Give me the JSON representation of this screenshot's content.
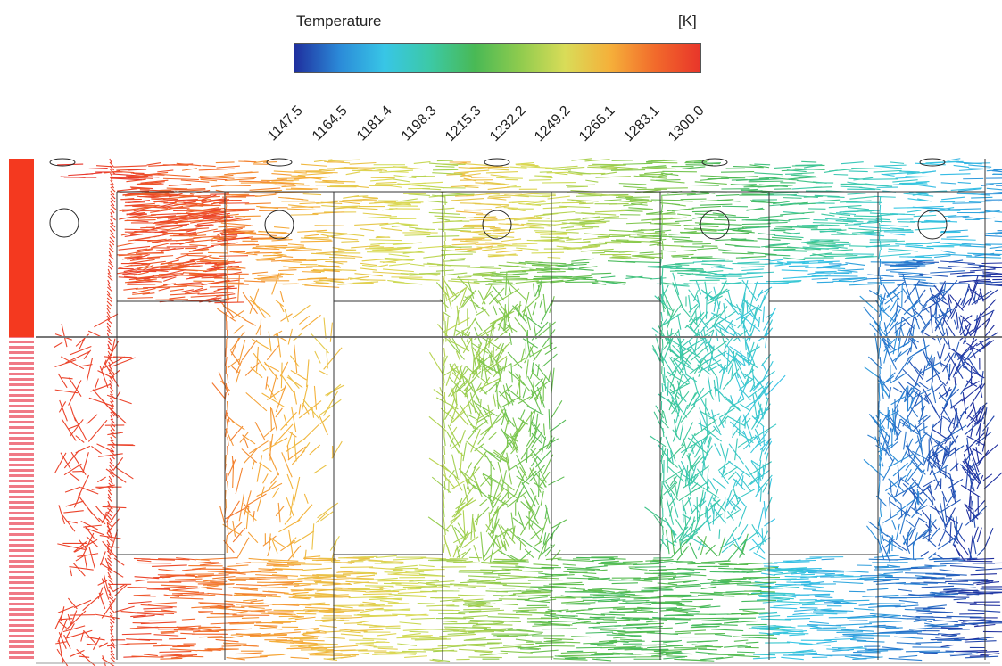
{
  "legend": {
    "title": "Temperature",
    "unit": "[K]",
    "ticks": [
      "1147.5",
      "1164.5",
      "1181.4",
      "1198.3",
      "1215.3",
      "1232.2",
      "1249.2",
      "1266.1",
      "1283.1",
      "1300.0"
    ],
    "colors": [
      "#1f2f9e",
      "#2b8ad8",
      "#38c6e6",
      "#3cc9a6",
      "#49b955",
      "#8fcb4e",
      "#d9dc58",
      "#f5b03a",
      "#f26a2b",
      "#e8352a"
    ]
  },
  "chart_data": {
    "type": "vector field",
    "variable": "Temperature",
    "unit": "K",
    "range": [
      1147.5,
      1300.0
    ],
    "inlet_color": "#f4391f"
  }
}
